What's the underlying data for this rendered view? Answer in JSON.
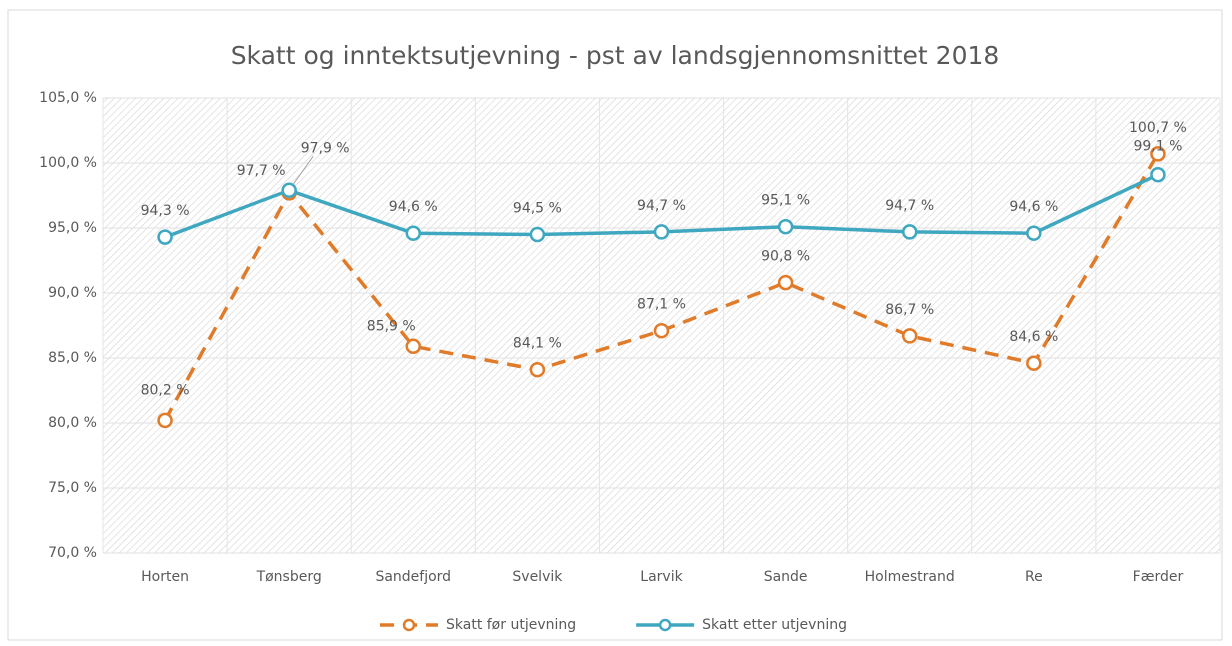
{
  "chart_data": {
    "type": "line",
    "title": "Skatt og inntektsutjevning - pst av landsgjennomsnittet 2018",
    "categories": [
      "Horten",
      "Tønsberg",
      "Sandefjord",
      "Svelvik",
      "Larvik",
      "Sande",
      "Holmestrand",
      "Re",
      "Færder"
    ],
    "series": [
      {
        "name": "Skatt før utjevning",
        "color": "#e07b2a",
        "dashed": true,
        "values": [
          80.2,
          97.7,
          85.9,
          84.1,
          87.1,
          90.8,
          86.7,
          84.6,
          100.7
        ],
        "value_labels": [
          "80,2 %",
          "97,7 %",
          "85,9 %",
          "84,1 %",
          "87,1 %",
          "90,8 %",
          "86,7 %",
          "84,6 %",
          "100,7 %"
        ]
      },
      {
        "name": "Skatt etter utjevning",
        "color": "#3fa7bf",
        "dashed": false,
        "values": [
          94.3,
          97.9,
          94.6,
          94.5,
          94.7,
          95.1,
          94.7,
          94.6,
          99.1
        ],
        "value_labels": [
          "94,3 %",
          "97,9 %",
          "94,6 %",
          "94,5 %",
          "94,7 %",
          "95,1 %",
          "94,7 %",
          "94,6 %",
          "99,1 %"
        ]
      }
    ],
    "ylim": [
      70,
      105
    ],
    "yticks": [
      {
        "value": 70,
        "label": "70,0 %"
      },
      {
        "value": 75,
        "label": "75,0 %"
      },
      {
        "value": 80,
        "label": "80,0 %"
      },
      {
        "value": 85,
        "label": "85,0 %"
      },
      {
        "value": 90,
        "label": "90,0 %"
      },
      {
        "value": 95,
        "label": "95,0 %"
      },
      {
        "value": 100,
        "label": "100,0 %"
      },
      {
        "value": 105,
        "label": "105,0 %"
      }
    ],
    "grid": true,
    "legend": "bottom"
  }
}
